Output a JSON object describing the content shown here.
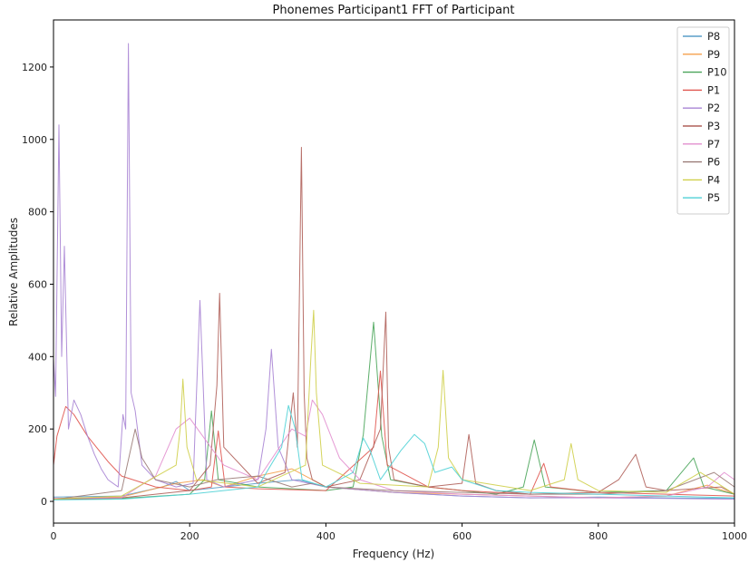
{
  "chart_data": {
    "type": "line",
    "title": "Phonemes Participant1 FFT of Participant",
    "xlabel": "Frequency (Hz)",
    "ylabel": "Relative Amplitudes",
    "xlim": [
      0,
      1000
    ],
    "ylim": [
      -60,
      1330
    ],
    "xticks": [
      "0",
      "200",
      "400",
      "600",
      "800",
      "1000"
    ],
    "yticks": [
      "0",
      "200",
      "400",
      "600",
      "800",
      "1000",
      "1200"
    ],
    "xtick_values": [
      0,
      200,
      400,
      600,
      800,
      1000
    ],
    "ytick_values": [
      0,
      200,
      400,
      600,
      800,
      1000,
      1200
    ],
    "grid": false,
    "legend_position": "top-right",
    "series": [
      {
        "name": "P8",
        "color": "#5a9ec9",
        "x": [
          0,
          100,
          160,
          180,
          200,
          300,
          360,
          400,
          500,
          600,
          700,
          800,
          900,
          1000
        ],
        "y": [
          12,
          15,
          40,
          55,
          30,
          50,
          60,
          40,
          25,
          15,
          10,
          12,
          10,
          8
        ]
      },
      {
        "name": "P9",
        "color": "#f5a04c",
        "x": [
          0,
          100,
          180,
          220,
          250,
          300,
          350,
          380,
          400,
          500,
          600,
          700,
          800,
          900,
          960,
          1000
        ],
        "y": [
          8,
          12,
          50,
          60,
          40,
          70,
          90,
          60,
          40,
          25,
          20,
          15,
          10,
          15,
          45,
          20
        ]
      },
      {
        "name": "P10",
        "color": "#4aa55a",
        "x": [
          0,
          100,
          200,
          222,
          232,
          242,
          300,
          400,
          440,
          455,
          470,
          482,
          495,
          550,
          600,
          650,
          690,
          706,
          722,
          800,
          900,
          940,
          955,
          1000
        ],
        "y": [
          5,
          8,
          20,
          60,
          250,
          60,
          40,
          30,
          40,
          185,
          495,
          180,
          60,
          40,
          30,
          20,
          40,
          170,
          40,
          25,
          30,
          120,
          40,
          20
        ]
      },
      {
        "name": "P1",
        "color": "#e0554f",
        "x": [
          0,
          5,
          18,
          30,
          50,
          80,
          100,
          150,
          200,
          232,
          242,
          252,
          300,
          400,
          470,
          480,
          490,
          550,
          600,
          700,
          720,
          730,
          800,
          900,
          1000
        ],
        "y": [
          100,
          180,
          262,
          240,
          180,
          110,
          70,
          40,
          30,
          40,
          195,
          40,
          35,
          30,
          150,
          360,
          100,
          40,
          30,
          20,
          105,
          40,
          25,
          20,
          15
        ]
      },
      {
        "name": "P2",
        "color": "#a884d4",
        "x": [
          0,
          3,
          8,
          12,
          16,
          22,
          30,
          40,
          50,
          60,
          70,
          80,
          95,
          102,
          106,
          110,
          114,
          120,
          130,
          150,
          180,
          205,
          215,
          225,
          250,
          300,
          312,
          320,
          330,
          350,
          400,
          500,
          600,
          700,
          800,
          900,
          1000
        ],
        "y": [
          395,
          290,
          1040,
          400,
          705,
          200,
          280,
          240,
          180,
          130,
          90,
          60,
          40,
          240,
          200,
          1265,
          300,
          250,
          100,
          60,
          40,
          50,
          555,
          60,
          40,
          60,
          200,
          420,
          150,
          60,
          40,
          25,
          15,
          10,
          10,
          8,
          6
        ]
      },
      {
        "name": "P3",
        "color": "#b0615a",
        "x": [
          0,
          100,
          200,
          230,
          240,
          244,
          250,
          300,
          340,
          352,
          358,
          364,
          368,
          372,
          380,
          400,
          450,
          480,
          488,
          492,
          500,
          550,
          600,
          610,
          620,
          650,
          700,
          800,
          830,
          855,
          870,
          900,
          980,
          1000
        ],
        "y": [
          5,
          10,
          30,
          100,
          320,
          575,
          150,
          50,
          80,
          300,
          150,
          978,
          300,
          120,
          60,
          40,
          60,
          200,
          523,
          150,
          60,
          40,
          50,
          185,
          50,
          30,
          20,
          25,
          60,
          130,
          40,
          30,
          40,
          20
        ]
      },
      {
        "name": "P7",
        "color": "#e28fcf",
        "x": [
          0,
          100,
          150,
          180,
          200,
          250,
          300,
          350,
          370,
          380,
          395,
          420,
          450,
          500,
          600,
          700,
          800,
          900,
          960,
          985,
          1000
        ],
        "y": [
          8,
          10,
          70,
          200,
          230,
          100,
          60,
          200,
          180,
          280,
          240,
          120,
          60,
          30,
          20,
          15,
          10,
          15,
          40,
          80,
          60
        ]
      },
      {
        "name": "P6",
        "color": "#9b7c78",
        "x": [
          0,
          100,
          120,
          130,
          150,
          200,
          240,
          300,
          350,
          380,
          400,
          500,
          600,
          700,
          800,
          900,
          970,
          1000
        ],
        "y": [
          5,
          30,
          200,
          120,
          60,
          40,
          60,
          70,
          40,
          50,
          40,
          30,
          25,
          20,
          20,
          30,
          80,
          40
        ]
      },
      {
        "name": "P4",
        "color": "#cfcf4a",
        "x": [
          0,
          100,
          180,
          186,
          190,
          196,
          210,
          300,
          370,
          378,
          382,
          386,
          395,
          450,
          550,
          565,
          572,
          580,
          600,
          700,
          750,
          760,
          770,
          800,
          900,
          950,
          1000
        ],
        "y": [
          6,
          15,
          100,
          200,
          338,
          150,
          60,
          40,
          100,
          400,
          528,
          300,
          100,
          50,
          40,
          150,
          362,
          120,
          60,
          30,
          60,
          160,
          60,
          30,
          25,
          80,
          20
        ]
      },
      {
        "name": "P5",
        "color": "#4fd1d6",
        "x": [
          0,
          100,
          200,
          300,
          335,
          345,
          355,
          365,
          400,
          440,
          455,
          465,
          480,
          510,
          530,
          545,
          560,
          585,
          600,
          650,
          700,
          800,
          900,
          1000
        ],
        "y": [
          4,
          6,
          20,
          40,
          150,
          265,
          200,
          60,
          40,
          80,
          175,
          140,
          60,
          140,
          185,
          160,
          80,
          95,
          60,
          30,
          25,
          20,
          15,
          10
        ]
      }
    ]
  }
}
